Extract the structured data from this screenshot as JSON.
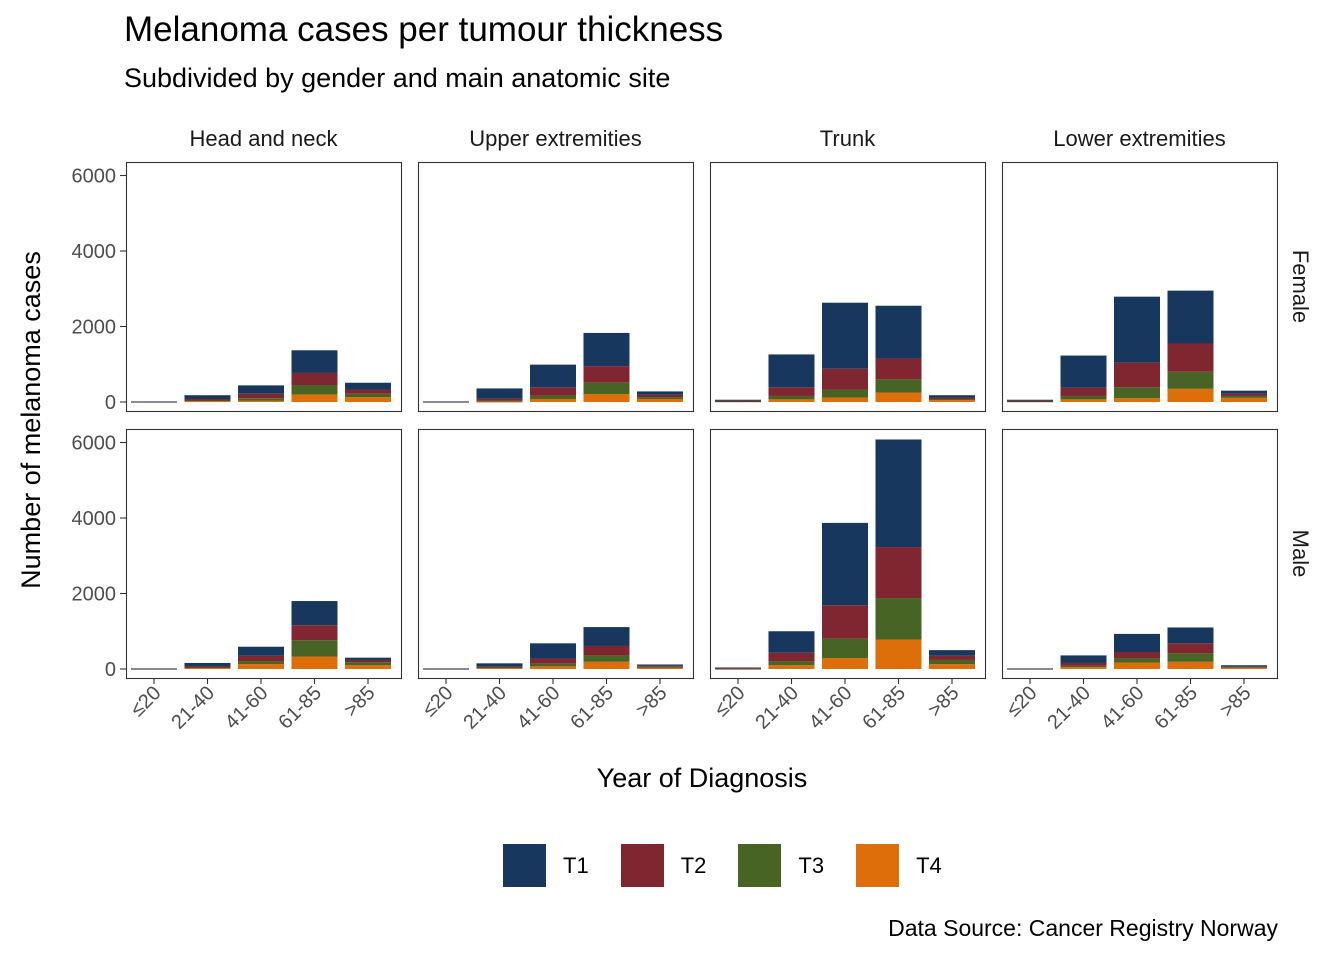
{
  "title": "Melanoma cases per tumour thickness",
  "subtitle": "Subdivided by gender and main anatomic site",
  "caption": "Data Source: Cancer Registry Norway",
  "chart_data": {
    "type": "bar",
    "stacked": true,
    "xlabel": "Year of Diagnosis",
    "ylabel": "Number of melanoma cases",
    "categories": [
      "≤20",
      "21-40",
      "41-60",
      "61-85",
      ">85"
    ],
    "ylim": [
      0,
      6000
    ],
    "yticks": [
      0,
      2000,
      4000,
      6000
    ],
    "facet_columns": [
      "Head and neck",
      "Upper extremities",
      "Trunk",
      "Lower extremities"
    ],
    "facet_rows": [
      "Female",
      "Male"
    ],
    "legend_position": "bottom",
    "grid": false,
    "series_colors": {
      "T1": "#17375E",
      "T2": "#7F2631",
      "T3": "#476425",
      "T4": "#DD6E0A"
    },
    "series_names": [
      "T1",
      "T2",
      "T3",
      "T4"
    ],
    "panels": [
      {
        "row": "Female",
        "col": "Head and neck",
        "T1": [
          5,
          100,
          220,
          600,
          180
        ],
        "T2": [
          3,
          40,
          120,
          320,
          110
        ],
        "T3": [
          2,
          20,
          70,
          250,
          90
        ],
        "T4": [
          5,
          20,
          30,
          200,
          130
        ]
      },
      {
        "row": "Female",
        "col": "Upper extremities",
        "T1": [
          5,
          270,
          600,
          880,
          90
        ],
        "T2": [
          3,
          60,
          220,
          440,
          60
        ],
        "T3": [
          2,
          20,
          90,
          300,
          50
        ],
        "T4": [
          5,
          10,
          80,
          210,
          80
        ]
      },
      {
        "row": "Female",
        "col": "Trunk",
        "T1": [
          30,
          870,
          1750,
          1400,
          60
        ],
        "T2": [
          10,
          230,
          550,
          550,
          40
        ],
        "T3": [
          5,
          90,
          210,
          350,
          30
        ],
        "T4": [
          15,
          70,
          120,
          250,
          50
        ]
      },
      {
        "row": "Female",
        "col": "Lower extremities",
        "T1": [
          30,
          850,
          1750,
          1400,
          80
        ],
        "T2": [
          10,
          220,
          650,
          750,
          60
        ],
        "T3": [
          5,
          90,
          290,
          450,
          50
        ],
        "T4": [
          15,
          70,
          100,
          350,
          110
        ]
      },
      {
        "row": "Male",
        "col": "Head and neck",
        "T1": [
          5,
          80,
          240,
          640,
          60
        ],
        "T2": [
          3,
          40,
          140,
          400,
          60
        ],
        "T3": [
          2,
          20,
          80,
          430,
          80
        ],
        "T4": [
          5,
          20,
          130,
          330,
          100
        ]
      },
      {
        "row": "Male",
        "col": "Upper extremities",
        "T1": [
          5,
          80,
          400,
          500,
          30
        ],
        "T2": [
          3,
          30,
          140,
          250,
          30
        ],
        "T3": [
          2,
          20,
          70,
          170,
          30
        ],
        "T4": [
          5,
          20,
          70,
          190,
          30
        ]
      },
      {
        "row": "Male",
        "col": "Trunk",
        "T1": [
          20,
          570,
          2180,
          2850,
          150
        ],
        "T2": [
          10,
          220,
          890,
          1350,
          110
        ],
        "T3": [
          5,
          110,
          510,
          1100,
          110
        ],
        "T4": [
          5,
          100,
          290,
          780,
          130
        ]
      },
      {
        "row": "Male",
        "col": "Lower extremities",
        "T1": [
          5,
          200,
          480,
          420,
          30
        ],
        "T2": [
          3,
          70,
          160,
          260,
          20
        ],
        "T3": [
          2,
          40,
          120,
          230,
          20
        ],
        "T4": [
          5,
          50,
          170,
          190,
          30
        ]
      }
    ]
  }
}
